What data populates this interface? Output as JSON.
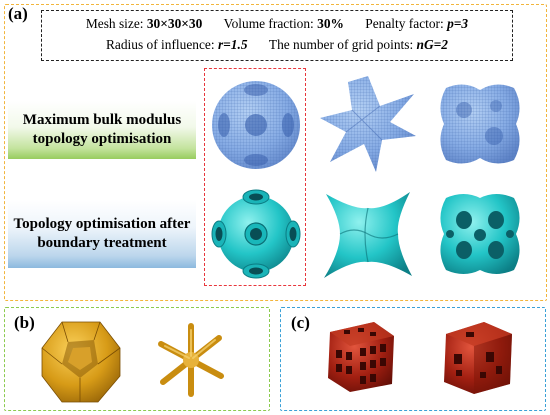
{
  "panel_a": {
    "tag": "(a)",
    "parameters": [
      {
        "label": "Mesh size:",
        "value": "30×30×30"
      },
      {
        "label": "Volume fraction:",
        "value": "30%"
      },
      {
        "label": "Penalty factor:",
        "value": "p=3"
      },
      {
        "label": "Radius of influence:",
        "value": "r=1.5"
      },
      {
        "label": "The number of grid points:",
        "value": "nG=2"
      }
    ],
    "row_labels": {
      "bulk_line1": "Maximum bulk modulus",
      "bulk_line2": "topology optimisation",
      "boundary_line1": "Topology optimisation after",
      "boundary_line2": "boundary treatment"
    }
  },
  "panel_b": {
    "tag": "(b)"
  },
  "panel_c": {
    "tag": "(c)"
  },
  "colors": {
    "panel_a_border": "#f2b53c",
    "panel_b_border": "#8ccb4f",
    "panel_c_border": "#3ba1d7",
    "highlight_border": "#e8363c",
    "voxel_blue": "#7fa8e3",
    "smooth_cyan": "#1fc3c5",
    "gold": "#d39a14",
    "dark_red": "#9a1c10"
  }
}
